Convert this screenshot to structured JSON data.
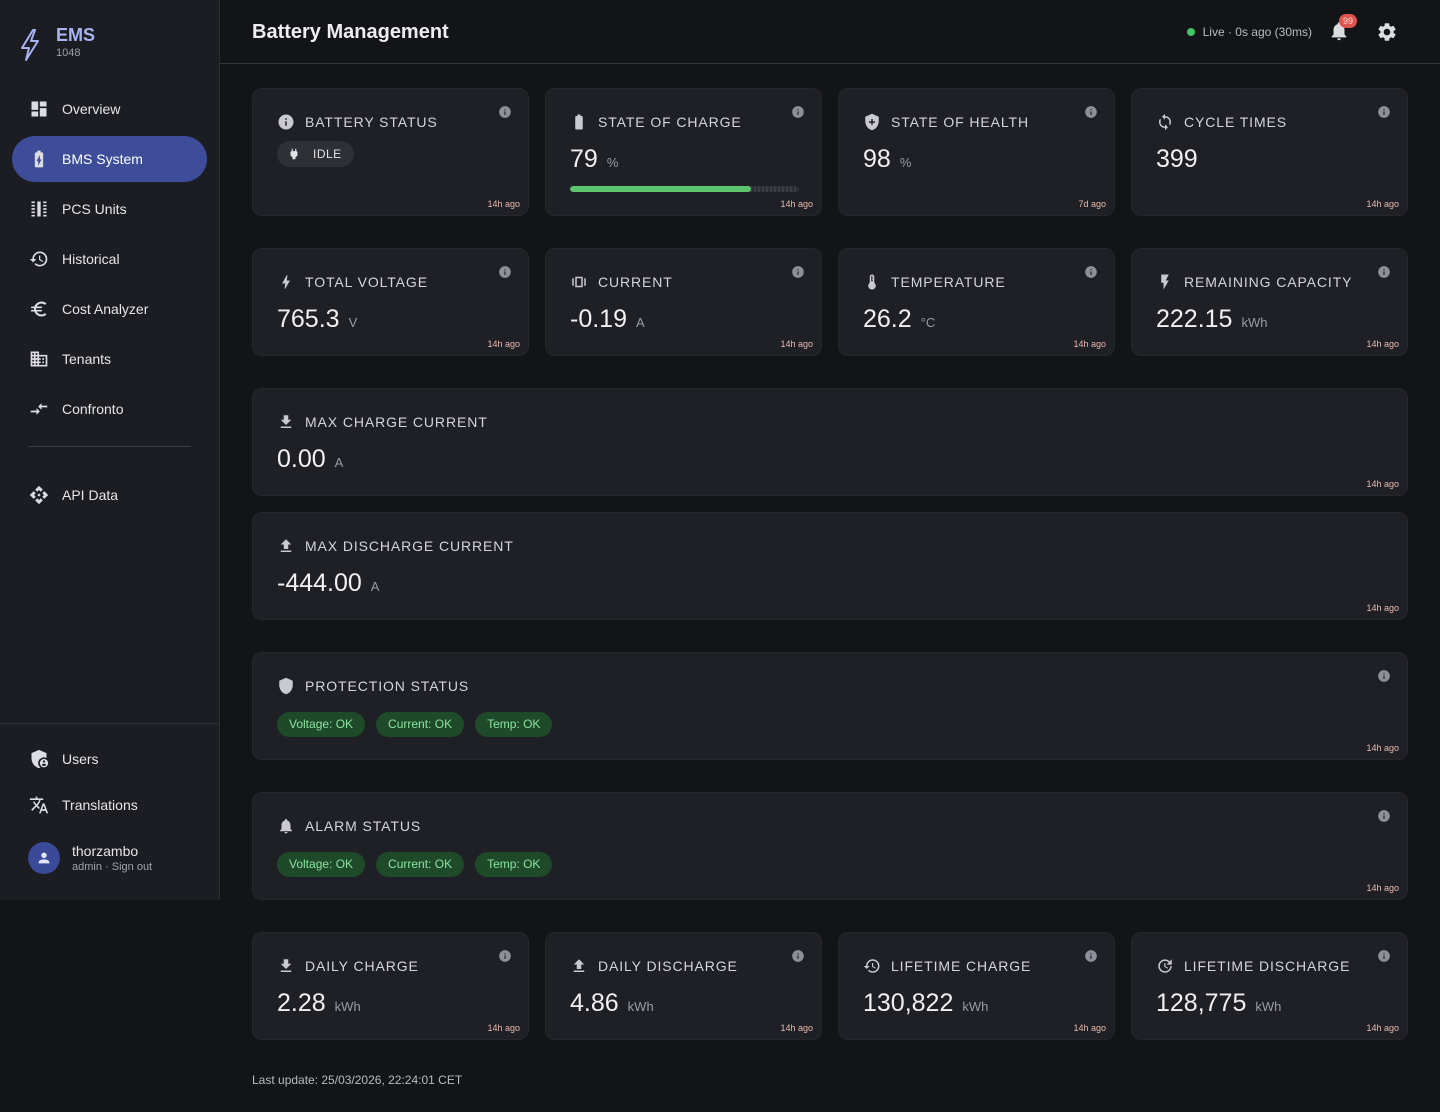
{
  "brand": {
    "title": "EMS",
    "subtitle": "1048"
  },
  "nav": {
    "items": [
      {
        "label": "Overview",
        "icon": "dashboard-icon",
        "active": false
      },
      {
        "label": "BMS System",
        "icon": "battery-icon",
        "active": true
      },
      {
        "label": "PCS Units",
        "icon": "tune-icon",
        "active": false
      },
      {
        "label": "Historical",
        "icon": "history-icon",
        "active": false
      },
      {
        "label": "Cost Analyzer",
        "icon": "euro-icon",
        "active": false
      },
      {
        "label": "Tenants",
        "icon": "building-icon",
        "active": false
      },
      {
        "label": "Confronto",
        "icon": "compare-icon",
        "active": false
      }
    ],
    "secondary": [
      {
        "label": "API Data",
        "icon": "api-icon"
      }
    ],
    "bottom": [
      {
        "label": "Users",
        "icon": "user-shield-icon"
      },
      {
        "label": "Translations",
        "icon": "translate-icon"
      }
    ]
  },
  "user": {
    "name": "thorzambo",
    "role": "admin",
    "separator": " · ",
    "signout": "Sign out"
  },
  "header": {
    "title": "Battery Management",
    "live_text": "Live · 0s ago (30ms)",
    "live_color": "#41c464",
    "notifications": "99"
  },
  "cards": {
    "battery_status": {
      "label": "Battery Status",
      "value": "IDLE",
      "ago": "14h ago"
    },
    "soc": {
      "label": "State of Charge",
      "value": "79",
      "unit": "%",
      "progress": 79,
      "ago": "14h ago"
    },
    "soh": {
      "label": "State of Health",
      "value": "98",
      "unit": "%",
      "ago": "7d ago"
    },
    "cycle": {
      "label": "Cycle Times",
      "value": "399",
      "ago": "14h ago"
    },
    "voltage": {
      "label": "Total Voltage",
      "value": "765.3",
      "unit": "V",
      "ago": "14h ago"
    },
    "current": {
      "label": "Current",
      "value": "-0.19",
      "unit": "A",
      "ago": "14h ago"
    },
    "temperature": {
      "label": "Temperature",
      "value": "26.2",
      "unit": "°C",
      "ago": "14h ago"
    },
    "remaining": {
      "label": "Remaining Capacity",
      "value": "222.15",
      "unit": "kWh",
      "ago": "14h ago"
    },
    "max_charge": {
      "label": "Max Charge Current",
      "value": "0.00",
      "unit": "A",
      "ago": "14h ago"
    },
    "max_discharge": {
      "label": "Max Discharge Current",
      "value": "-444.00",
      "unit": "A",
      "ago": "14h ago"
    },
    "protection": {
      "label": "Protection Status",
      "chips": [
        "Voltage: OK",
        "Current: OK",
        "Temp: OK"
      ],
      "ago": "14h ago"
    },
    "alarm": {
      "label": "Alarm Status",
      "chips": [
        "Voltage: OK",
        "Current: OK",
        "Temp: OK"
      ],
      "ago": "14h ago"
    },
    "daily_charge": {
      "label": "Daily Charge",
      "value": "2.28",
      "unit": "kWh",
      "ago": "14h ago"
    },
    "daily_discharge": {
      "label": "Daily Discharge",
      "value": "4.86",
      "unit": "kWh",
      "ago": "14h ago"
    },
    "lifetime_charge": {
      "label": "Lifetime Charge",
      "value": "130,822",
      "unit": "kWh",
      "ago": "14h ago"
    },
    "lifetime_discharge": {
      "label": "Lifetime Discharge",
      "value": "128,775",
      "unit": "kWh",
      "ago": "14h ago"
    }
  },
  "footer": {
    "last_update": "Last update: 25/03/2026, 22:24:01 CET"
  }
}
